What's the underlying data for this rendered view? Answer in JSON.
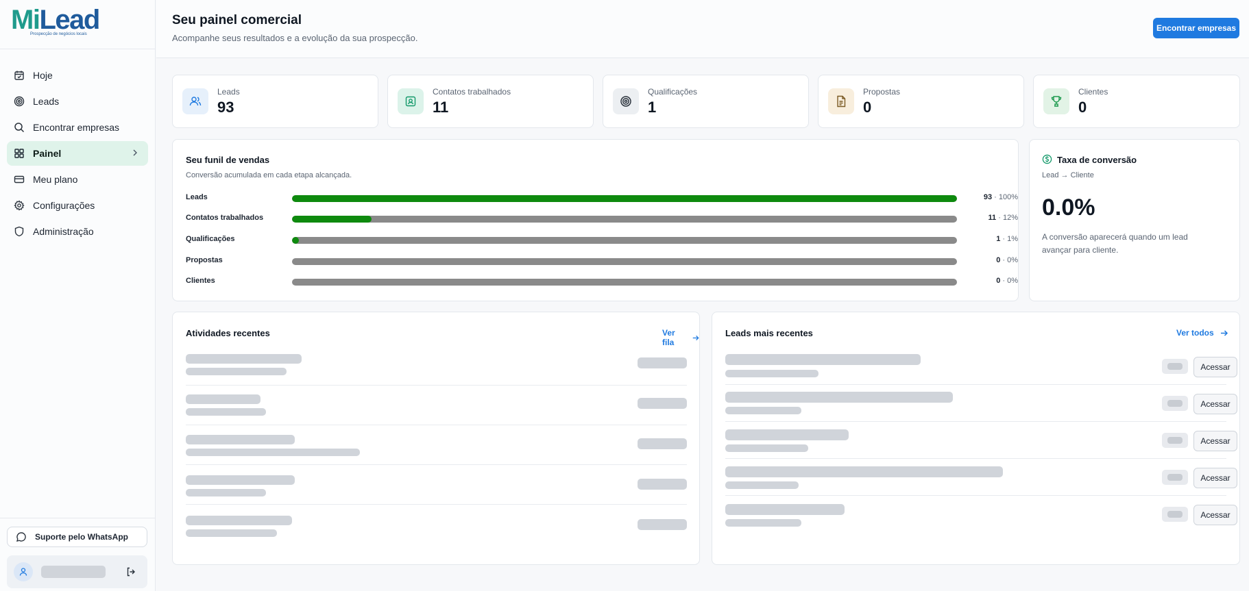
{
  "brand": {
    "name_part1": "Mi",
    "name_part2": "Lead",
    "tagline": "Prospecção de negócios locais"
  },
  "sidebar": {
    "items": [
      {
        "label": "Hoje",
        "icon": "calendar-icon"
      },
      {
        "label": "Leads",
        "icon": "target-icon"
      },
      {
        "label": "Encontrar empresas",
        "icon": "search-icon"
      },
      {
        "label": "Painel",
        "icon": "grid-icon",
        "active": true
      },
      {
        "label": "Meu plano",
        "icon": "credit-card-icon"
      },
      {
        "label": "Configurações",
        "icon": "gear-icon"
      },
      {
        "label": "Administração",
        "icon": "shield-icon"
      }
    ],
    "support_label": "Suporte pelo WhatsApp"
  },
  "header": {
    "title": "Seu painel comercial",
    "subtitle": "Acompanhe seus resultados e a evolução da sua prospecção.",
    "cta": "Encontrar empresas"
  },
  "stats": [
    {
      "label": "Leads",
      "value": "93",
      "icon": "users-icon",
      "color": "#1f7ae0",
      "bg": "#e6f0fb"
    },
    {
      "label": "Contatos trabalhados",
      "value": "11",
      "icon": "contact-card-icon",
      "color": "#13996a",
      "bg": "#dcf3ea"
    },
    {
      "label": "Qualificações",
      "value": "1",
      "icon": "target-icon",
      "color": "#2a323c",
      "bg": "#eceff2"
    },
    {
      "label": "Propostas",
      "value": "0",
      "icon": "document-icon",
      "color": "#a5742a",
      "bg": "#f8eedd"
    },
    {
      "label": "Clientes",
      "value": "0",
      "icon": "trophy-icon",
      "color": "#1d9a4e",
      "bg": "#e2f3e6"
    }
  ],
  "funnel": {
    "title": "Seu funil de vendas",
    "subtitle": "Conversão acumulada em cada etapa alcançada.",
    "stages": [
      {
        "label": "Leads",
        "count": "93",
        "percent": "100%",
        "fraction": 1.0
      },
      {
        "label": "Contatos trabalhados",
        "count": "11",
        "percent": "12%",
        "fraction": 0.12
      },
      {
        "label": "Qualificações",
        "count": "1",
        "percent": "1%",
        "fraction": 0.01
      },
      {
        "label": "Propostas",
        "count": "0",
        "percent": "0%",
        "fraction": 0
      },
      {
        "label": "Clientes",
        "count": "0",
        "percent": "0%",
        "fraction": 0
      }
    ],
    "separator": " · "
  },
  "conversion": {
    "title": "Taxa de conversão",
    "subtitle": "Lead → Cliente",
    "value": "0.0%",
    "note": "A conversão aparecerá quando um lead avançar para cliente."
  },
  "activities": {
    "title": "Atividades recentes",
    "link": "Ver fila"
  },
  "recent_leads": {
    "title": "Leads mais recentes",
    "link": "Ver todos",
    "button_label": "Acessar"
  }
}
